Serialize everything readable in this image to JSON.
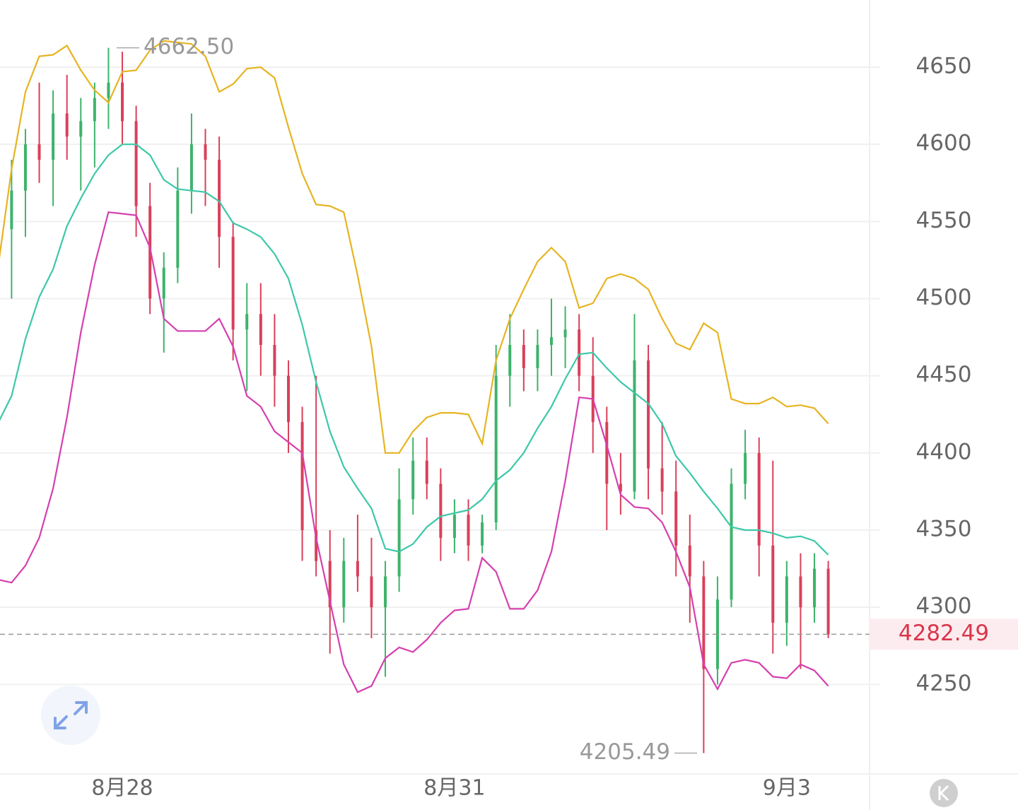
{
  "chart_data": {
    "type": "candlestick",
    "ylim": [
      4192,
      4693.5
    ],
    "yticks": [
      4250,
      4300,
      4350,
      4400,
      4450,
      4500,
      4550,
      4600,
      4650
    ],
    "grid": true,
    "categories": [
      null,
      null,
      null,
      null,
      null,
      null,
      null,
      null,
      null,
      "8月28",
      null,
      null,
      null,
      null,
      null,
      null,
      null,
      null,
      null,
      null,
      null,
      null,
      null,
      null,
      null,
      null,
      null,
      null,
      null,
      null,
      null,
      null,
      null,
      "8月31",
      null,
      null,
      null,
      null,
      null,
      null,
      null,
      null,
      null,
      null,
      null,
      null,
      null,
      null,
      null,
      null,
      null,
      null,
      null,
      null,
      null,
      null,
      null,
      "9月3",
      null,
      null,
      null
    ],
    "up_color": "#3db36b",
    "down_color": "#d9405a",
    "ohlc": [
      [
        4520,
        4560,
        4480,
        4545
      ],
      [
        4545,
        4590,
        4500,
        4570
      ],
      [
        4570,
        4610,
        4540,
        4600
      ],
      [
        4600,
        4640,
        4575,
        4590
      ],
      [
        4590,
        4635,
        4560,
        4620
      ],
      [
        4620,
        4645,
        4590,
        4605
      ],
      [
        4605,
        4630,
        4570,
        4615
      ],
      [
        4615,
        4640,
        4585,
        4630
      ],
      [
        4630,
        4662.5,
        4610,
        4640
      ],
      [
        4640,
        4660,
        4600,
        4615
      ],
      [
        4615,
        4625,
        4540,
        4560
      ],
      [
        4560,
        4575,
        4490,
        4500
      ],
      [
        4500,
        4530,
        4465,
        4520
      ],
      [
        4520,
        4585,
        4510,
        4570
      ],
      [
        4570,
        4620,
        4555,
        4600
      ],
      [
        4600,
        4610,
        4560,
        4590
      ],
      [
        4590,
        4605,
        4520,
        4540
      ],
      [
        4540,
        4550,
        4460,
        4480
      ],
      [
        4480,
        4510,
        4440,
        4490
      ],
      [
        4490,
        4510,
        4450,
        4470
      ],
      [
        4470,
        4490,
        4430,
        4450
      ],
      [
        4450,
        4460,
        4400,
        4420
      ],
      [
        4420,
        4430,
        4330,
        4350
      ],
      [
        4350,
        4450,
        4320,
        4330
      ],
      [
        4330,
        4350,
        4270,
        4300
      ],
      [
        4300,
        4345,
        4290,
        4330
      ],
      [
        4330,
        4360,
        4310,
        4320
      ],
      [
        4320,
        4345,
        4280,
        4300
      ],
      [
        4300,
        4330,
        4255,
        4320
      ],
      [
        4320,
        4390,
        4310,
        4370
      ],
      [
        4370,
        4410,
        4360,
        4395
      ],
      [
        4395,
        4410,
        4370,
        4380
      ],
      [
        4380,
        4390,
        4330,
        4345
      ],
      [
        4345,
        4370,
        4335,
        4360
      ],
      [
        4360,
        4370,
        4330,
        4340
      ],
      [
        4340,
        4360,
        4335,
        4355
      ],
      [
        4355,
        4470,
        4350,
        4450
      ],
      [
        4450,
        4490,
        4430,
        4470
      ],
      [
        4470,
        4480,
        4440,
        4455
      ],
      [
        4455,
        4480,
        4440,
        4470
      ],
      [
        4470,
        4500,
        4450,
        4475
      ],
      [
        4475,
        4495,
        4455,
        4480
      ],
      [
        4480,
        4490,
        4440,
        4450
      ],
      [
        4450,
        4475,
        4400,
        4420
      ],
      [
        4420,
        4430,
        4350,
        4380
      ],
      [
        4380,
        4400,
        4360,
        4375
      ],
      [
        4375,
        4490,
        4370,
        4460
      ],
      [
        4460,
        4470,
        4370,
        4390
      ],
      [
        4390,
        4420,
        4360,
        4375
      ],
      [
        4375,
        4395,
        4320,
        4340
      ],
      [
        4340,
        4360,
        4290,
        4320
      ],
      [
        4320,
        4330,
        4205.49,
        4260
      ],
      [
        4260,
        4320,
        4250,
        4305
      ],
      [
        4305,
        4390,
        4300,
        4380
      ],
      [
        4380,
        4415,
        4370,
        4400
      ],
      [
        4400,
        4410,
        4320,
        4340
      ],
      [
        4340,
        4395,
        4270,
        4290
      ],
      [
        4290,
        4330,
        4275,
        4320
      ],
      [
        4320,
        4335,
        4260,
        4300
      ],
      [
        4300,
        4335,
        4290,
        4325
      ],
      [
        4325,
        4330,
        4280,
        4282.49
      ]
    ],
    "bands": {
      "upper": {
        "color": "#e6b422",
        "values": [
          4519,
          4584,
          4634,
          4657,
          4658,
          4664,
          4648,
          4635,
          4627,
          4647,
          4648,
          4661,
          4667,
          4666,
          4665,
          4657,
          4634,
          4639,
          4649,
          4650,
          4643,
          4611,
          4581,
          4561,
          4560,
          4556,
          4515,
          4469,
          4400,
          4400,
          4414,
          4423,
          4426,
          4426,
          4425,
          4406,
          4460,
          4487,
          4506,
          4524,
          4533,
          4524,
          4494,
          4497,
          4513,
          4516,
          4513,
          4506,
          4487,
          4471,
          4467,
          4484,
          4478,
          4435,
          4432,
          4432,
          4436,
          4430,
          4431,
          4429,
          4419
        ]
      },
      "middle": {
        "color": "#3cc8a8",
        "values": [
          4419,
          4437,
          4474,
          4501,
          4519,
          4547,
          4565,
          4581,
          4593,
          4600,
          4600,
          4593,
          4577,
          4571,
          4570,
          4569,
          4563,
          4549,
          4545,
          4540,
          4529,
          4513,
          4483,
          4446,
          4414,
          4391,
          4377,
          4364,
          4338,
          4336,
          4341,
          4352,
          4359,
          4361,
          4363,
          4370,
          4382,
          4389,
          4400,
          4416,
          4430,
          4448,
          4464,
          4465,
          4455,
          4446,
          4439,
          4432,
          4419,
          4398,
          4387,
          4375,
          4364,
          4352,
          4350,
          4350,
          4348,
          4345,
          4346,
          4343,
          4334
        ]
      },
      "lower": {
        "color": "#d63fae",
        "values": [
          4318,
          4316,
          4327,
          4345,
          4377,
          4423,
          4478,
          4522,
          4556,
          4555,
          4554,
          4533,
          4487,
          4479,
          4479,
          4479,
          4487,
          4469,
          4437,
          4430,
          4414,
          4407,
          4400,
          4345,
          4304,
          4263,
          4245,
          4249,
          4267,
          4274,
          4271,
          4279,
          4290,
          4298,
          4299,
          4332,
          4323,
          4299,
          4299,
          4311,
          4336,
          4382,
          4436,
          4435,
          4405,
          4373,
          4365,
          4364,
          4355,
          4336,
          4313,
          4263,
          4247,
          4264,
          4266,
          4264,
          4255,
          4254,
          4263,
          4259,
          4249
        ]
      }
    },
    "max_label": {
      "value": 4662.5,
      "label": "4662.50"
    },
    "min_label": {
      "value": 4205.49,
      "label": "4205.49"
    },
    "last_price": {
      "value": 4282.49,
      "label": "4282.49",
      "color": "#d9364c"
    }
  }
}
